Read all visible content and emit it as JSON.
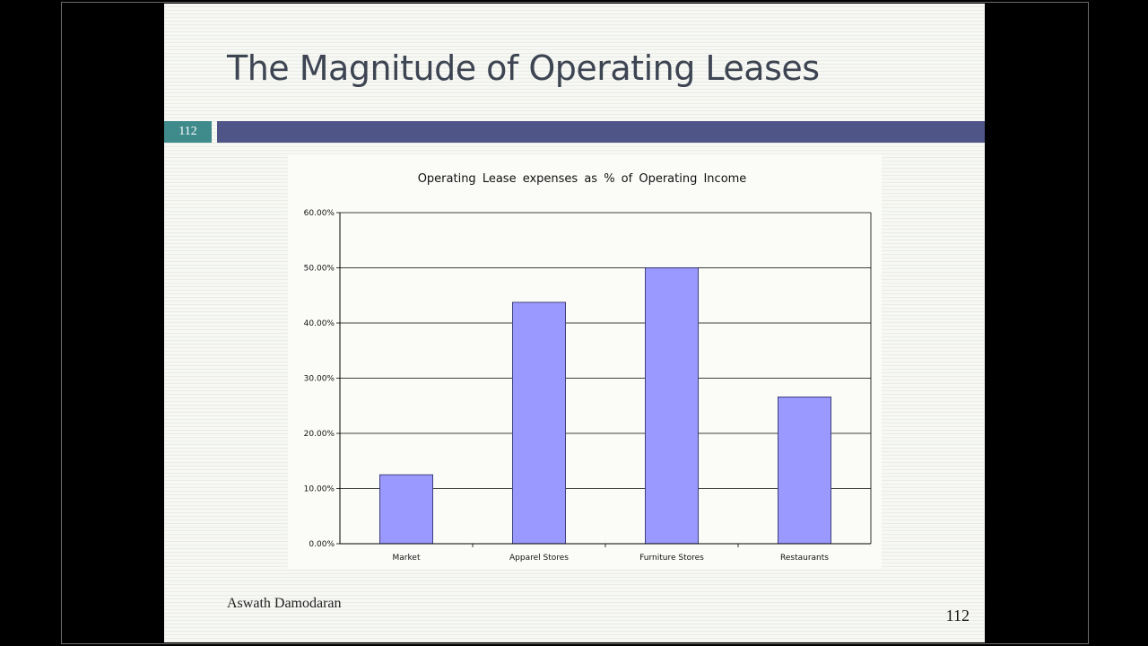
{
  "slide": {
    "title": "The Magnitude of Operating Leases",
    "number_badge": "112",
    "author": "Aswath Damodaran",
    "page_number": "112"
  },
  "colors": {
    "title_bar": "#4f5587",
    "badge": "#3f8a8a",
    "bar_fill": "#9999ff",
    "bar_stroke": "#2b2b5e"
  },
  "chart_data": {
    "type": "bar",
    "title": "Operating Lease expenses as % of Operating Income",
    "categories": [
      "Market",
      "Apparel Stores",
      "Furniture Stores",
      "Restaurants"
    ],
    "values": [
      12.5,
      43.75,
      50.0,
      26.6
    ],
    "ylim": [
      0,
      60
    ],
    "y_ticks": [
      0,
      10,
      20,
      30,
      40,
      50,
      60
    ],
    "y_tick_labels": [
      "0.00%",
      "10.00%",
      "20.00%",
      "30.00%",
      "40.00%",
      "50.00%",
      "60.00%"
    ],
    "xlabel": "",
    "ylabel": "",
    "grid": true,
    "legend": "none"
  }
}
